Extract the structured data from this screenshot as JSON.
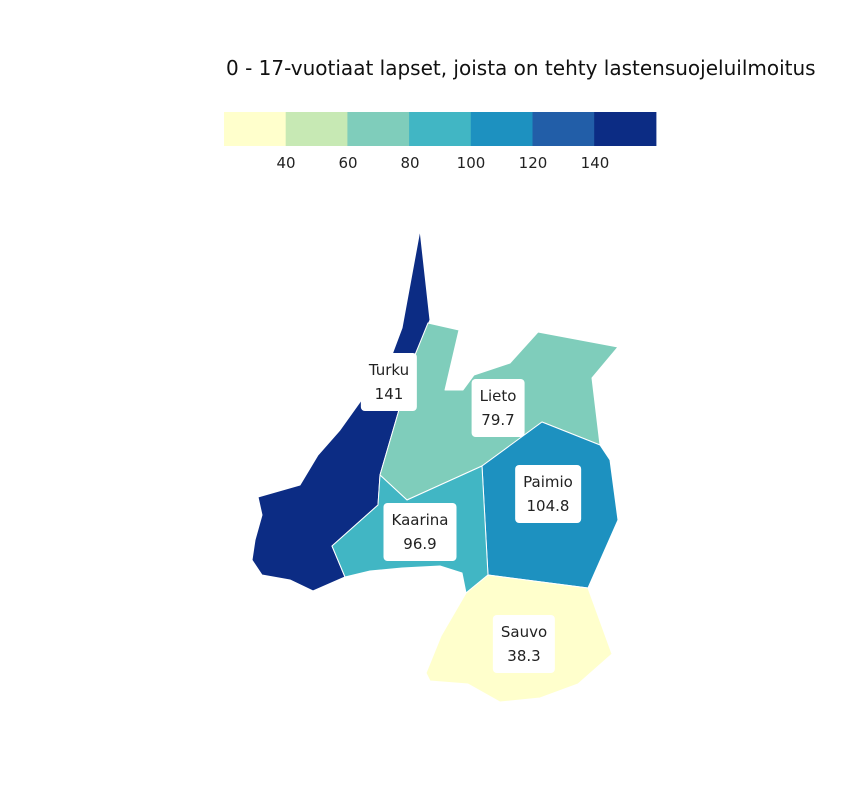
{
  "title": "0 - 17-vuotiaat lapset, joista on tehty lastensuojeluilmoitus",
  "legend": {
    "colors": [
      "#ffffcc",
      "#c7e9b4",
      "#7fcdbb",
      "#41b6c4",
      "#1d91c0",
      "#225ea8",
      "#0c2c84"
    ],
    "ticks": [
      "40",
      "60",
      "80",
      "100",
      "120",
      "140"
    ]
  },
  "regions": [
    {
      "name": "Turku",
      "value": "141",
      "color": "#0c2c84"
    },
    {
      "name": "Lieto",
      "value": "79.7",
      "color": "#7fcdbb"
    },
    {
      "name": "Paimio",
      "value": "104.8",
      "color": "#1d91c0"
    },
    {
      "name": "Kaarina",
      "value": "96.9",
      "color": "#41b6c4"
    },
    {
      "name": "Sauvo",
      "value": "38.3",
      "color": "#ffffcc"
    }
  ]
}
